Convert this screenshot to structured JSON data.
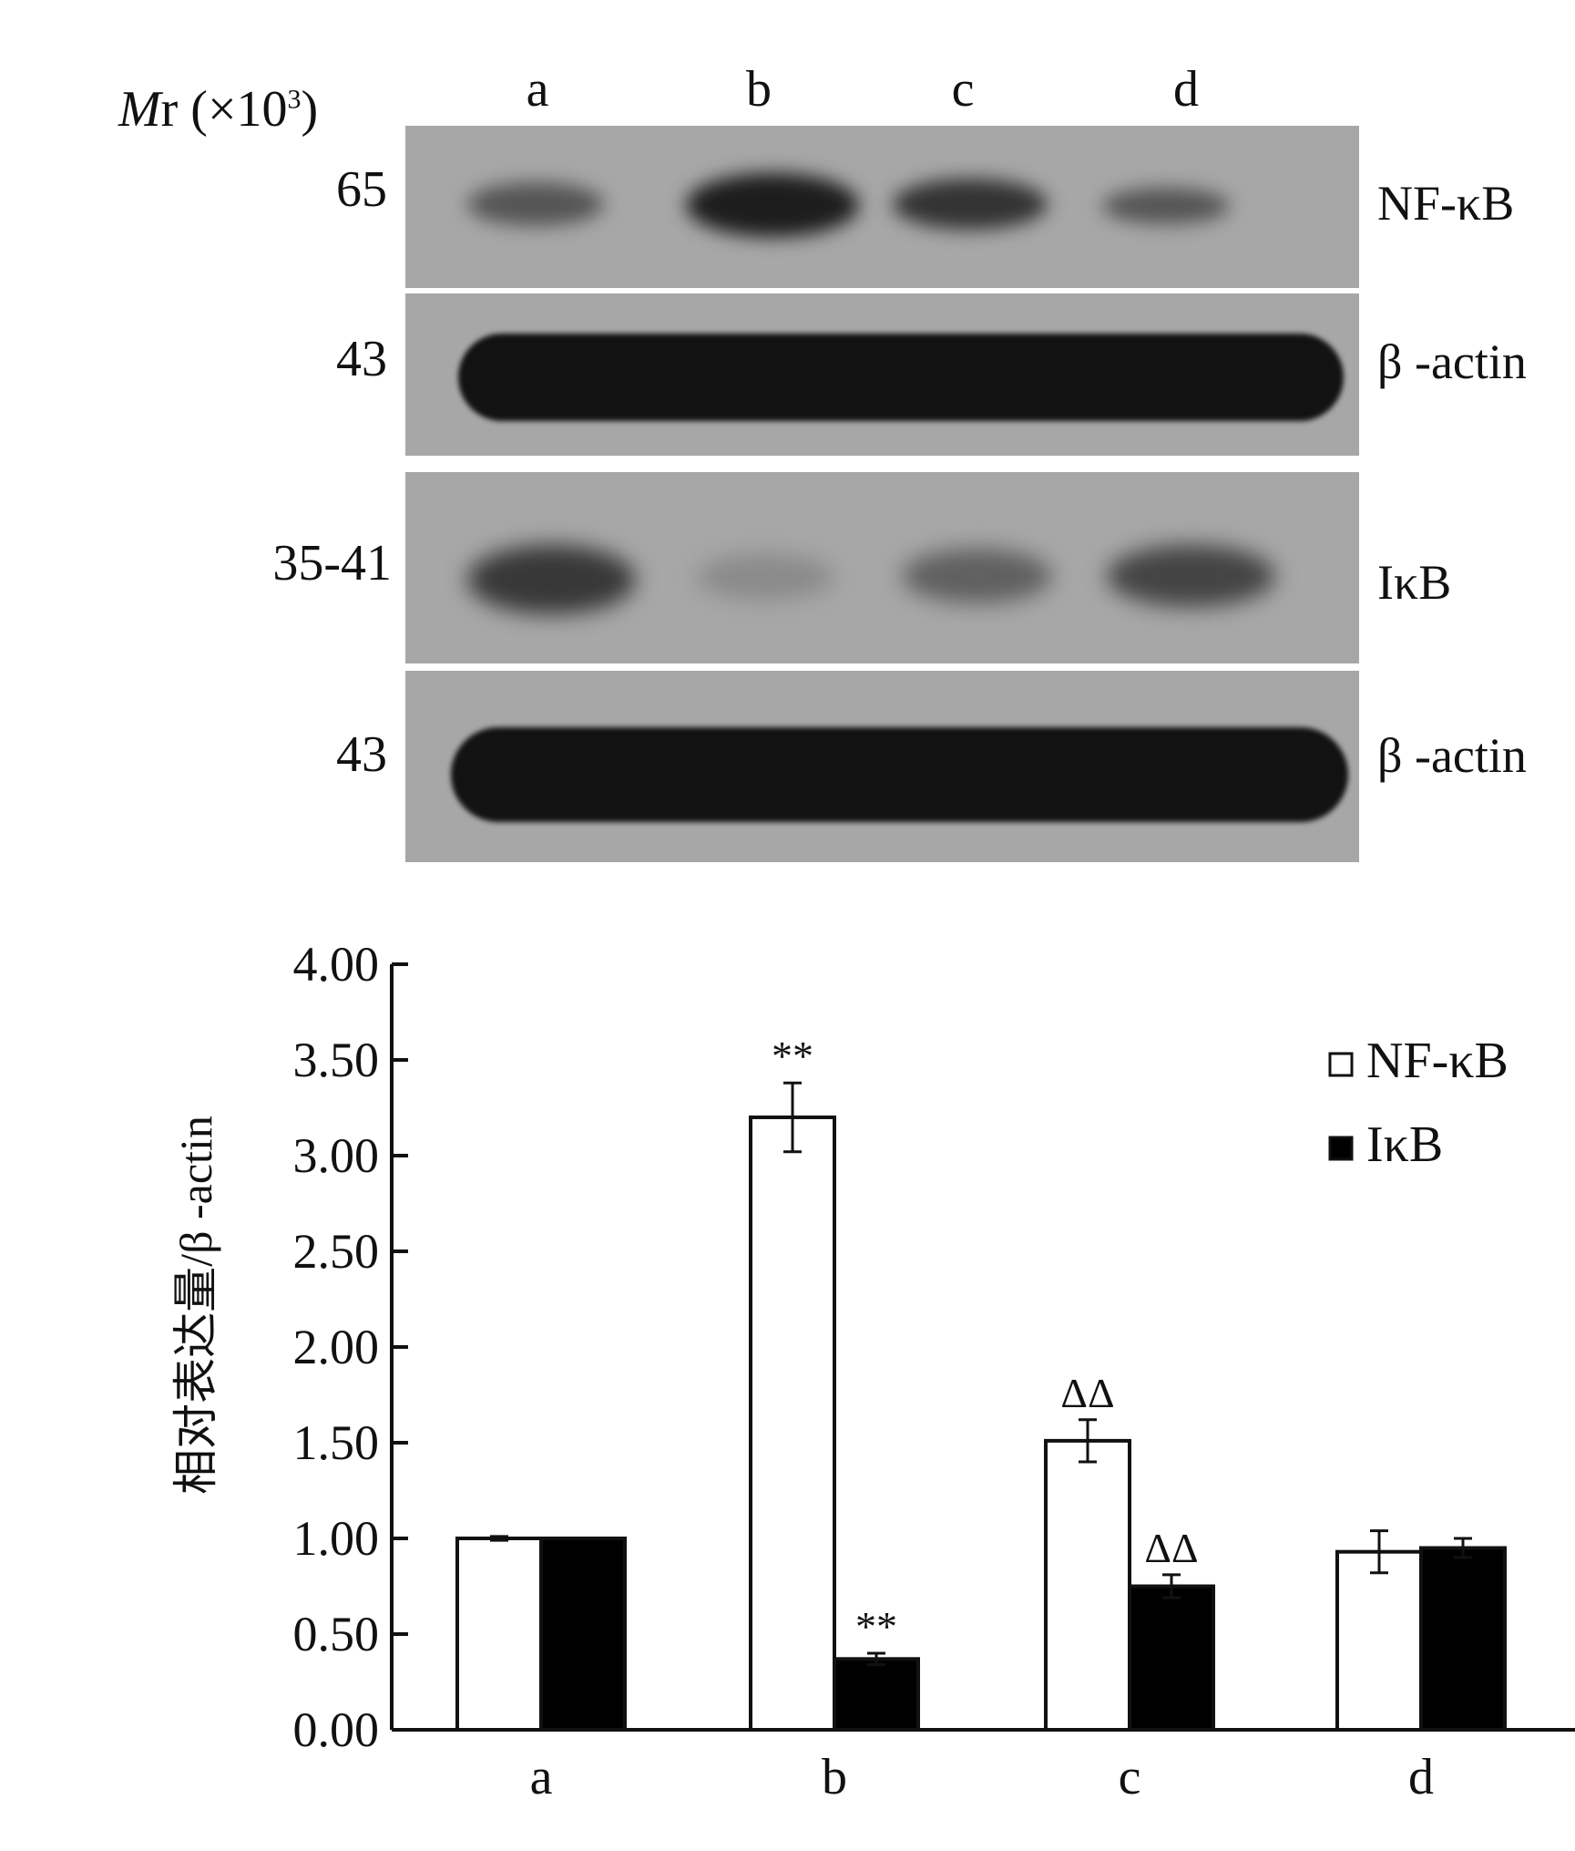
{
  "blot": {
    "mr_label": {
      "italic": "M",
      "rest": "r (×10",
      "sup": "3",
      "close": ")"
    },
    "lanes": [
      "a",
      "b",
      "c",
      "d"
    ],
    "rows": [
      {
        "mw": "65",
        "protein": "NF-κB",
        "band_intensity": [
          0.35,
          0.85,
          0.65,
          0.4
        ]
      },
      {
        "mw": "43",
        "protein": "β -actin",
        "band_intensity": [
          1.0,
          1.0,
          1.0,
          1.0
        ]
      },
      {
        "mw": "35-41",
        "protein": "IκB",
        "band_intensity": [
          0.7,
          0.25,
          0.45,
          0.6
        ]
      },
      {
        "mw": "43",
        "protein": "β -actin",
        "band_intensity": [
          1.0,
          1.0,
          1.0,
          1.0
        ]
      }
    ]
  },
  "chart_data": {
    "type": "bar",
    "categories": [
      "a",
      "b",
      "c",
      "d"
    ],
    "series": [
      {
        "name": "NF-κB",
        "fill": "#ffffff",
        "values": [
          1.0,
          3.2,
          1.51,
          0.93
        ],
        "errors": [
          0.01,
          0.18,
          0.11,
          0.11
        ],
        "annotations": [
          "",
          "**",
          "ΔΔ",
          ""
        ]
      },
      {
        "name": "IκB",
        "fill": "#000000",
        "values": [
          1.0,
          0.37,
          0.75,
          0.95
        ],
        "errors": [
          0.0,
          0.03,
          0.06,
          0.05
        ],
        "annotations": [
          "",
          "**",
          "ΔΔ",
          ""
        ]
      }
    ],
    "ylabel": "相对表达量/β -actin",
    "ylim": [
      0,
      4
    ],
    "yticks": [
      "0.00",
      "0.50",
      "1.00",
      "1.50",
      "2.00",
      "2.50",
      "3.00",
      "3.50",
      "4.00"
    ],
    "legend_position": "top-right",
    "grid": false
  }
}
